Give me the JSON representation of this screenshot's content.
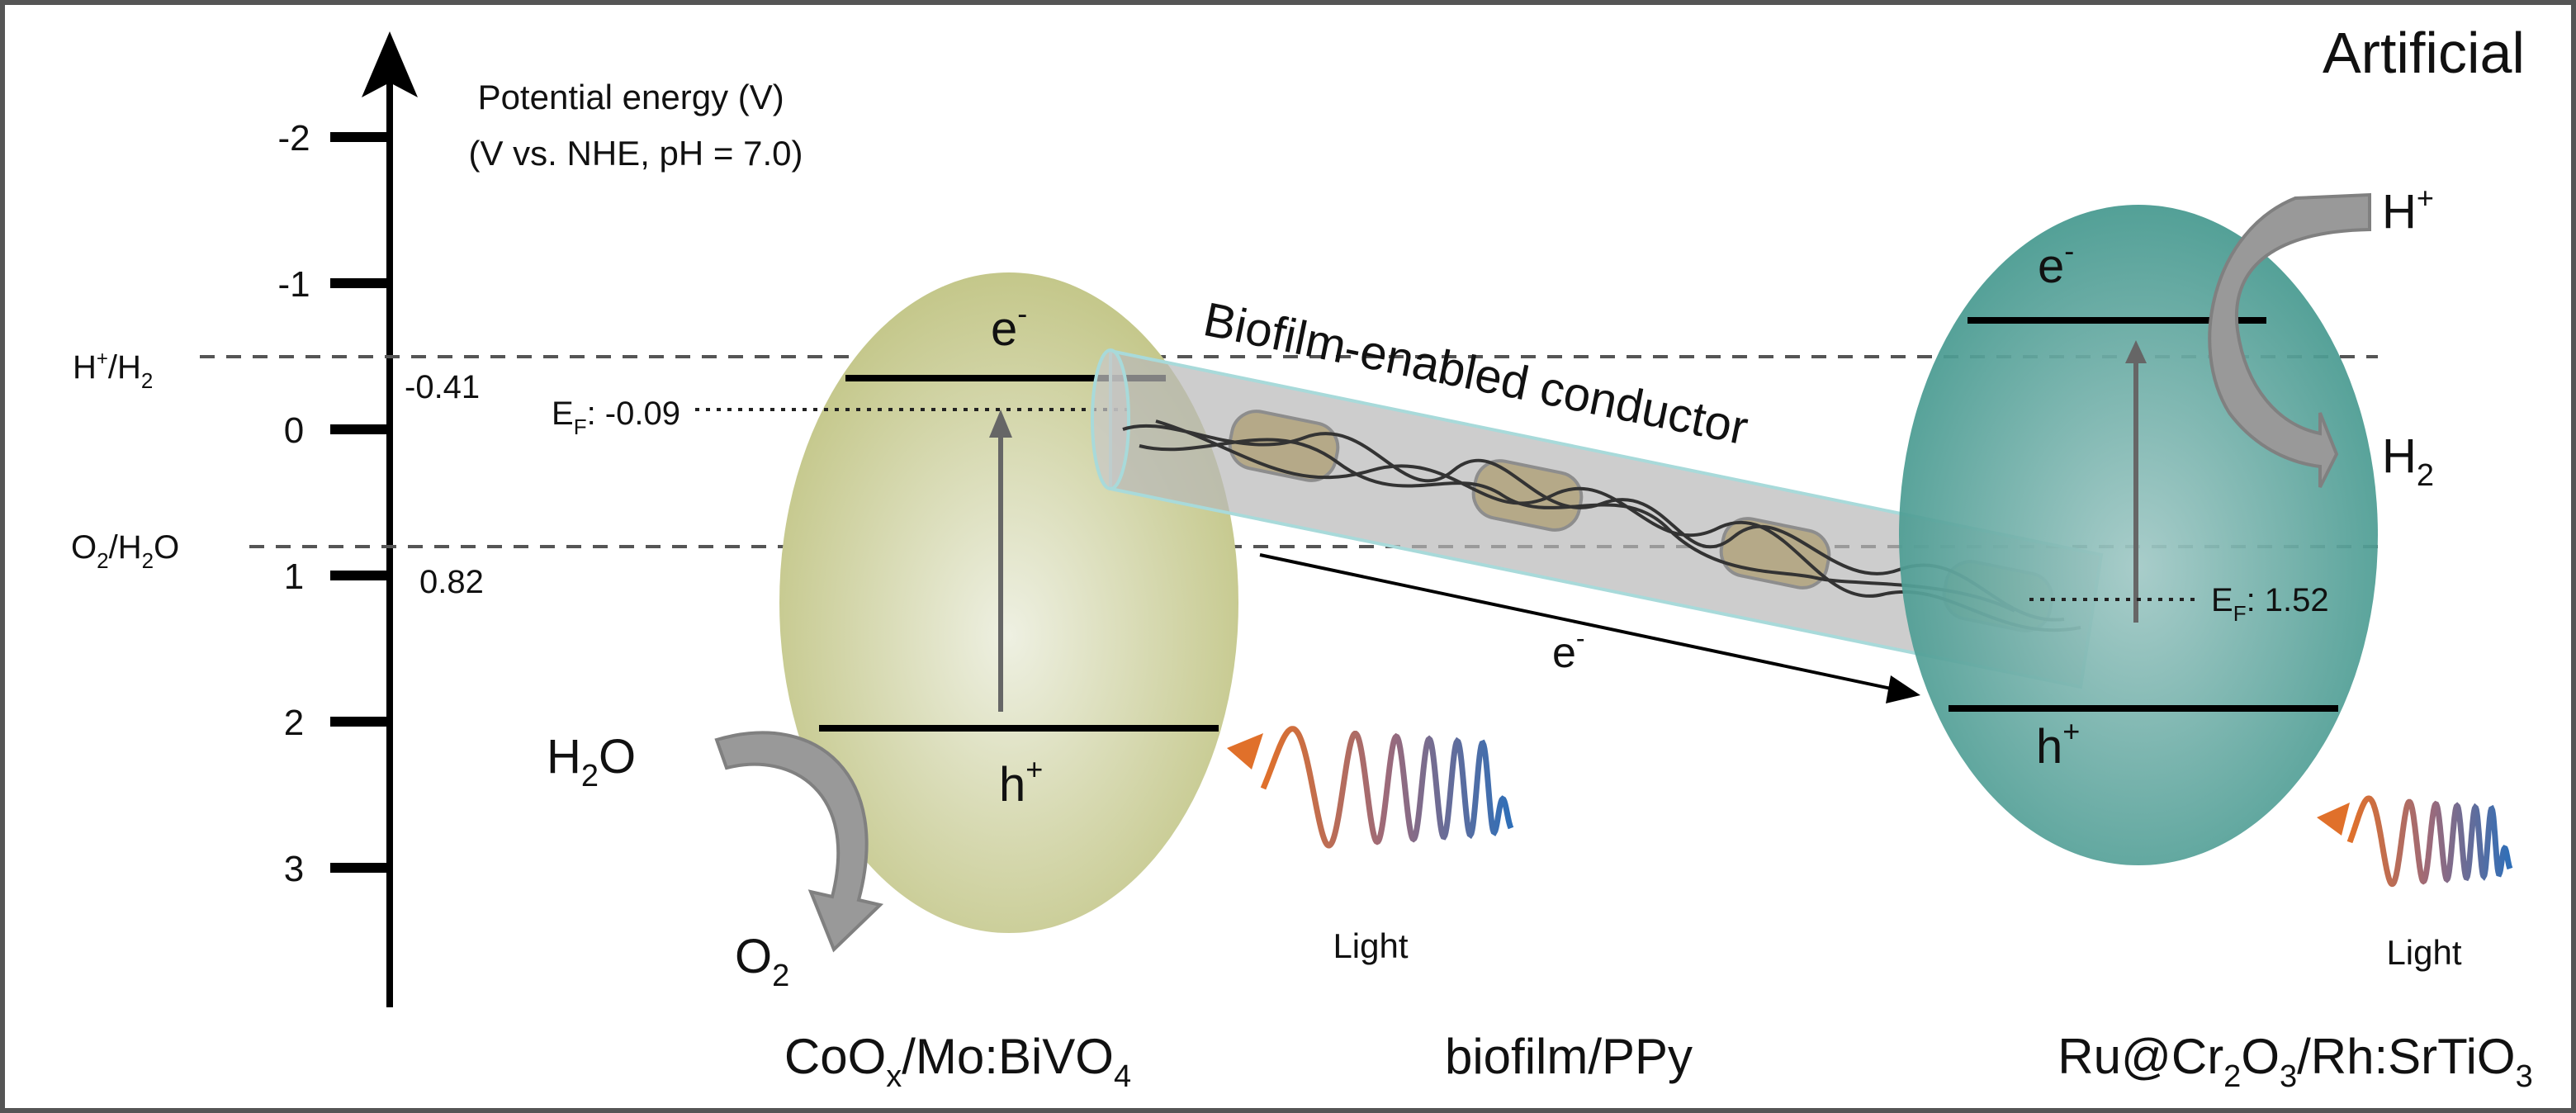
{
  "title": "Artificial",
  "axis": {
    "label_line1": "Potential energy (V)",
    "label_line2": "(V vs. NHE, pH = 7.0)",
    "ticks": [
      "-2",
      "-1",
      "0",
      "1",
      "2",
      "3"
    ]
  },
  "references": {
    "h_label": "H",
    "h_sup": "+",
    "h_slash": "/H",
    "h_sub": "2",
    "h_value": "-0.41",
    "o_label": "O",
    "o_sub": "2",
    "o_mid": "/H",
    "o_sub2": "2",
    "o_end": "O",
    "o_value": "0.82"
  },
  "left_semiconductor": {
    "ef_e": "E",
    "ef_sub": "F",
    "ef_value": ": -0.09",
    "cb_label": "e",
    "cb_sup": "-",
    "vb_label": "h",
    "vb_sup": "+",
    "reactant": "H",
    "reactant_sub": "2",
    "reactant_end": "O",
    "product": "O",
    "product_sub": "2",
    "light": "Light",
    "name_parts": [
      "CoO",
      "x",
      "/Mo:BiVO",
      "4"
    ],
    "color": "#c4c78a"
  },
  "conductor": {
    "title": "Biofilm-enabled conductor",
    "electron": "e",
    "electron_sup": "-",
    "name": "biofilm/PPy"
  },
  "right_semiconductor": {
    "ef_e": "E",
    "ef_sub": "F",
    "ef_value": ": 1.52",
    "cb_label": "e",
    "cb_sup": "-",
    "vb_label": "h",
    "vb_sup": "+",
    "reactant": "H",
    "reactant_sup": "+",
    "product": "H",
    "product_sub": "2",
    "light": "Light",
    "name_parts": [
      "Ru@Cr",
      "2",
      "O",
      "3",
      "/Rh:SrTiO",
      "3"
    ],
    "color": "#4a9e97"
  }
}
